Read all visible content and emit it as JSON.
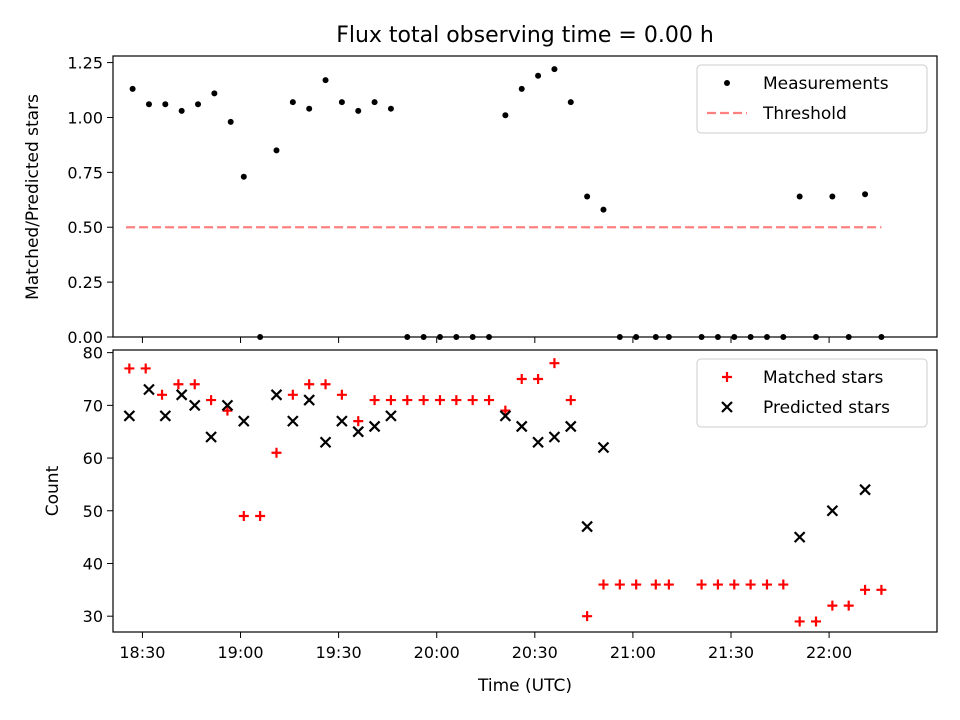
{
  "figure": {
    "title": "Flux total observing time = 0.00 h"
  },
  "chart_data": [
    {
      "type": "scatter",
      "ylabel": "Matched/Predicted stars",
      "ylim": [
        0,
        1.28
      ],
      "xlim": [
        "18:21",
        "22:33"
      ],
      "yticks": [
        0.0,
        0.25,
        0.5,
        0.75,
        1.0,
        1.25
      ],
      "ytick_labels": [
        "0.00",
        "0.25",
        "0.50",
        "0.75",
        "1.00",
        "1.25"
      ],
      "xticks": [
        "18:30",
        "19:00",
        "19:30",
        "20:00",
        "20:30",
        "21:00",
        "21:30",
        "22:00"
      ],
      "show_xtick_labels": false,
      "legend": {
        "placement": "upper right",
        "entries": [
          "Measurements",
          "Threshold"
        ]
      },
      "series": [
        {
          "name": "Measurements",
          "marker": "dot",
          "color": "#000000",
          "points": [
            [
              "18:27",
              1.13
            ],
            [
              "18:32",
              1.06
            ],
            [
              "18:37",
              1.06
            ],
            [
              "18:42",
              1.03
            ],
            [
              "18:47",
              1.06
            ],
            [
              "18:52",
              1.11
            ],
            [
              "18:57",
              0.98
            ],
            [
              "19:01",
              0.73
            ],
            [
              "19:06",
              0.0
            ],
            [
              "19:11",
              0.85
            ],
            [
              "19:16",
              1.07
            ],
            [
              "19:21",
              1.04
            ],
            [
              "19:26",
              1.17
            ],
            [
              "19:31",
              1.07
            ],
            [
              "19:36",
              1.03
            ],
            [
              "19:41",
              1.07
            ],
            [
              "19:46",
              1.04
            ],
            [
              "19:51",
              0.0
            ],
            [
              "19:56",
              0.0
            ],
            [
              "20:01",
              0.0
            ],
            [
              "20:06",
              0.0
            ],
            [
              "20:11",
              0.0
            ],
            [
              "20:16",
              0.0
            ],
            [
              "20:21",
              1.01
            ],
            [
              "20:26",
              1.13
            ],
            [
              "20:31",
              1.19
            ],
            [
              "20:36",
              1.22
            ],
            [
              "20:41",
              1.07
            ],
            [
              "20:46",
              0.64
            ],
            [
              "20:51",
              0.58
            ],
            [
              "20:56",
              0.0
            ],
            [
              "21:01",
              0.0
            ],
            [
              "21:07",
              0.0
            ],
            [
              "21:11",
              0.0
            ],
            [
              "21:21",
              0.0
            ],
            [
              "21:26",
              0.0
            ],
            [
              "21:31",
              0.0
            ],
            [
              "21:36",
              0.0
            ],
            [
              "21:41",
              0.0
            ],
            [
              "21:46",
              0.0
            ],
            [
              "21:51",
              0.64
            ],
            [
              "21:56",
              0.0
            ],
            [
              "22:01",
              0.64
            ],
            [
              "22:06",
              0.0
            ],
            [
              "22:11",
              0.65
            ],
            [
              "22:16",
              0.0
            ]
          ]
        },
        {
          "name": "Threshold",
          "line": "dashed",
          "color": "#ff8080",
          "x": [
            "18:25",
            "22:16"
          ],
          "y": [
            0.5,
            0.5
          ]
        }
      ]
    },
    {
      "type": "scatter",
      "xlabel": "Time (UTC)",
      "ylabel": "Count",
      "ylim": [
        27,
        80.5
      ],
      "xlim": [
        "18:21",
        "22:33"
      ],
      "yticks": [
        30,
        40,
        50,
        60,
        70,
        80
      ],
      "ytick_labels": [
        "30",
        "40",
        "50",
        "60",
        "70",
        "80"
      ],
      "xticks": [
        "18:30",
        "19:00",
        "19:30",
        "20:00",
        "20:30",
        "21:00",
        "21:30",
        "22:00"
      ],
      "xtick_labels": [
        "18:30",
        "19:00",
        "19:30",
        "20:00",
        "20:30",
        "21:00",
        "21:30",
        "22:00"
      ],
      "legend": {
        "placement": "upper right",
        "entries": [
          "Matched stars",
          "Predicted stars"
        ]
      },
      "series": [
        {
          "name": "Matched stars",
          "marker": "plus",
          "color": "#ff0000",
          "points": [
            [
              "18:26",
              77
            ],
            [
              "18:31",
              77
            ],
            [
              "18:36",
              72
            ],
            [
              "18:41",
              74
            ],
            [
              "18:46",
              74
            ],
            [
              "18:51",
              71
            ],
            [
              "18:56",
              69
            ],
            [
              "19:01",
              49
            ],
            [
              "19:06",
              49
            ],
            [
              "19:11",
              61
            ],
            [
              "19:16",
              72
            ],
            [
              "19:21",
              74
            ],
            [
              "19:26",
              74
            ],
            [
              "19:31",
              72
            ],
            [
              "19:36",
              67
            ],
            [
              "19:41",
              71
            ],
            [
              "19:46",
              71
            ],
            [
              "19:51",
              71
            ],
            [
              "19:56",
              71
            ],
            [
              "20:01",
              71
            ],
            [
              "20:06",
              71
            ],
            [
              "20:11",
              71
            ],
            [
              "20:16",
              71
            ],
            [
              "20:21",
              69
            ],
            [
              "20:26",
              75
            ],
            [
              "20:31",
              75
            ],
            [
              "20:36",
              78
            ],
            [
              "20:41",
              71
            ],
            [
              "20:46",
              30
            ],
            [
              "20:51",
              36
            ],
            [
              "20:56",
              36
            ],
            [
              "21:01",
              36
            ],
            [
              "21:07",
              36
            ],
            [
              "21:11",
              36
            ],
            [
              "21:21",
              36
            ],
            [
              "21:26",
              36
            ],
            [
              "21:31",
              36
            ],
            [
              "21:36",
              36
            ],
            [
              "21:41",
              36
            ],
            [
              "21:46",
              36
            ],
            [
              "21:51",
              29
            ],
            [
              "21:56",
              29
            ],
            [
              "22:01",
              32
            ],
            [
              "22:06",
              32
            ],
            [
              "22:11",
              35
            ],
            [
              "22:16",
              35
            ]
          ]
        },
        {
          "name": "Predicted stars",
          "marker": "x",
          "color": "#000000",
          "points": [
            [
              "18:26",
              68
            ],
            [
              "18:32",
              73
            ],
            [
              "18:37",
              68
            ],
            [
              "18:42",
              72
            ],
            [
              "18:46",
              70
            ],
            [
              "18:51",
              64
            ],
            [
              "18:56",
              70
            ],
            [
              "19:01",
              67
            ],
            [
              "19:11",
              72
            ],
            [
              "19:16",
              67
            ],
            [
              "19:21",
              71
            ],
            [
              "19:26",
              63
            ],
            [
              "19:31",
              67
            ],
            [
              "19:36",
              65
            ],
            [
              "19:41",
              66
            ],
            [
              "19:46",
              68
            ],
            [
              "20:21",
              68
            ],
            [
              "20:26",
              66
            ],
            [
              "20:31",
              63
            ],
            [
              "20:36",
              64
            ],
            [
              "20:41",
              66
            ],
            [
              "20:46",
              47
            ],
            [
              "20:51",
              62
            ],
            [
              "21:51",
              45
            ],
            [
              "22:01",
              50
            ],
            [
              "22:11",
              54
            ]
          ]
        }
      ]
    }
  ]
}
